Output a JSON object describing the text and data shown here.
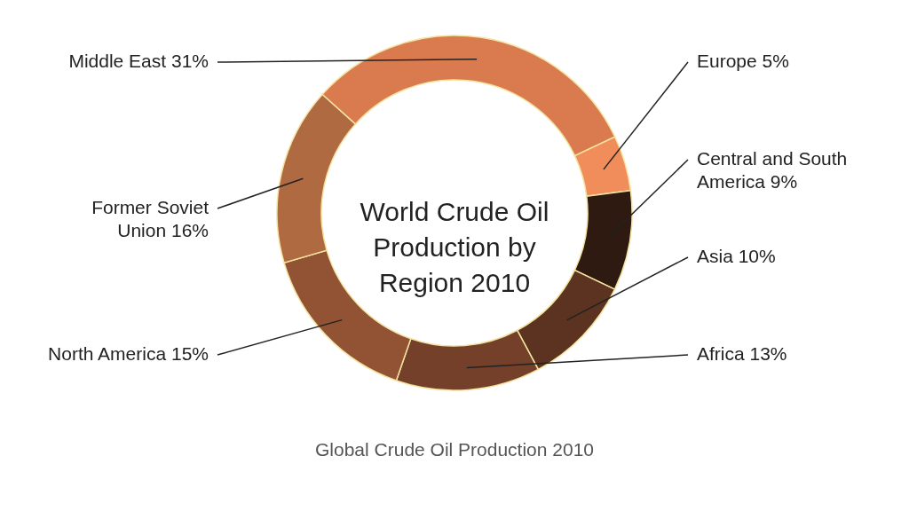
{
  "chart_data": {
    "type": "donut",
    "title": "World Crude Oil Production by Region 2010",
    "categories": [
      "Middle East",
      "Europe",
      "Central and South America",
      "Asia",
      "Africa",
      "North America",
      "Former Soviet Union"
    ],
    "values": [
      31,
      5,
      9,
      10,
      13,
      15,
      16
    ],
    "value_labels": [
      "31%",
      "5%",
      "9%",
      "10%",
      "13%",
      "15%",
      "16%"
    ],
    "colors": [
      "#d97b4f",
      "#f08d5a",
      "#2e1a10",
      "#5c3320",
      "#74402a",
      "#925234",
      "#b06a42"
    ],
    "annotations": [
      "Global Crude Oil Production 2010"
    ]
  }
}
